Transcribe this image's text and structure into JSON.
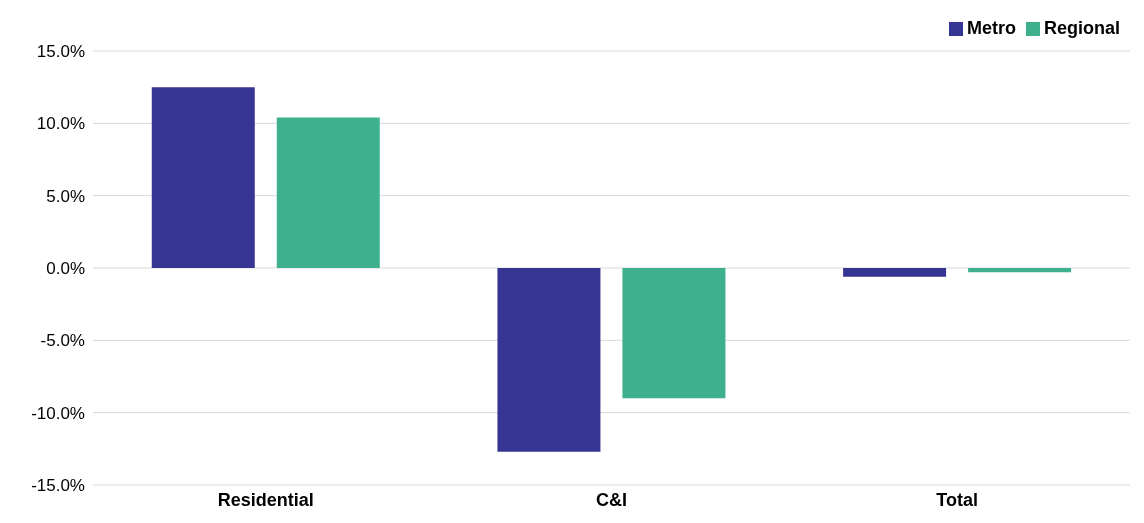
{
  "chart_data": {
    "type": "bar",
    "categories": [
      "Residential",
      "C&I",
      "Total"
    ],
    "series": [
      {
        "name": "Metro",
        "color": "#363593",
        "values": [
          12.5,
          -12.7,
          -0.6
        ]
      },
      {
        "name": "Regional",
        "color": "#3eb08e",
        "values": [
          10.4,
          -9.0,
          -0.3
        ]
      }
    ],
    "ylim": [
      -15,
      15
    ],
    "yticks": [
      {
        "value": -15,
        "label": "-15.0%"
      },
      {
        "value": -10,
        "label": "-10.0%"
      },
      {
        "value": -5,
        "label": "-5.0%"
      },
      {
        "value": 0,
        "label": "0.0%"
      },
      {
        "value": 5,
        "label": "5.0%"
      },
      {
        "value": 10,
        "label": "10.0%"
      },
      {
        "value": 15,
        "label": "15.0%"
      }
    ],
    "grid": "y",
    "legend": "top right"
  }
}
